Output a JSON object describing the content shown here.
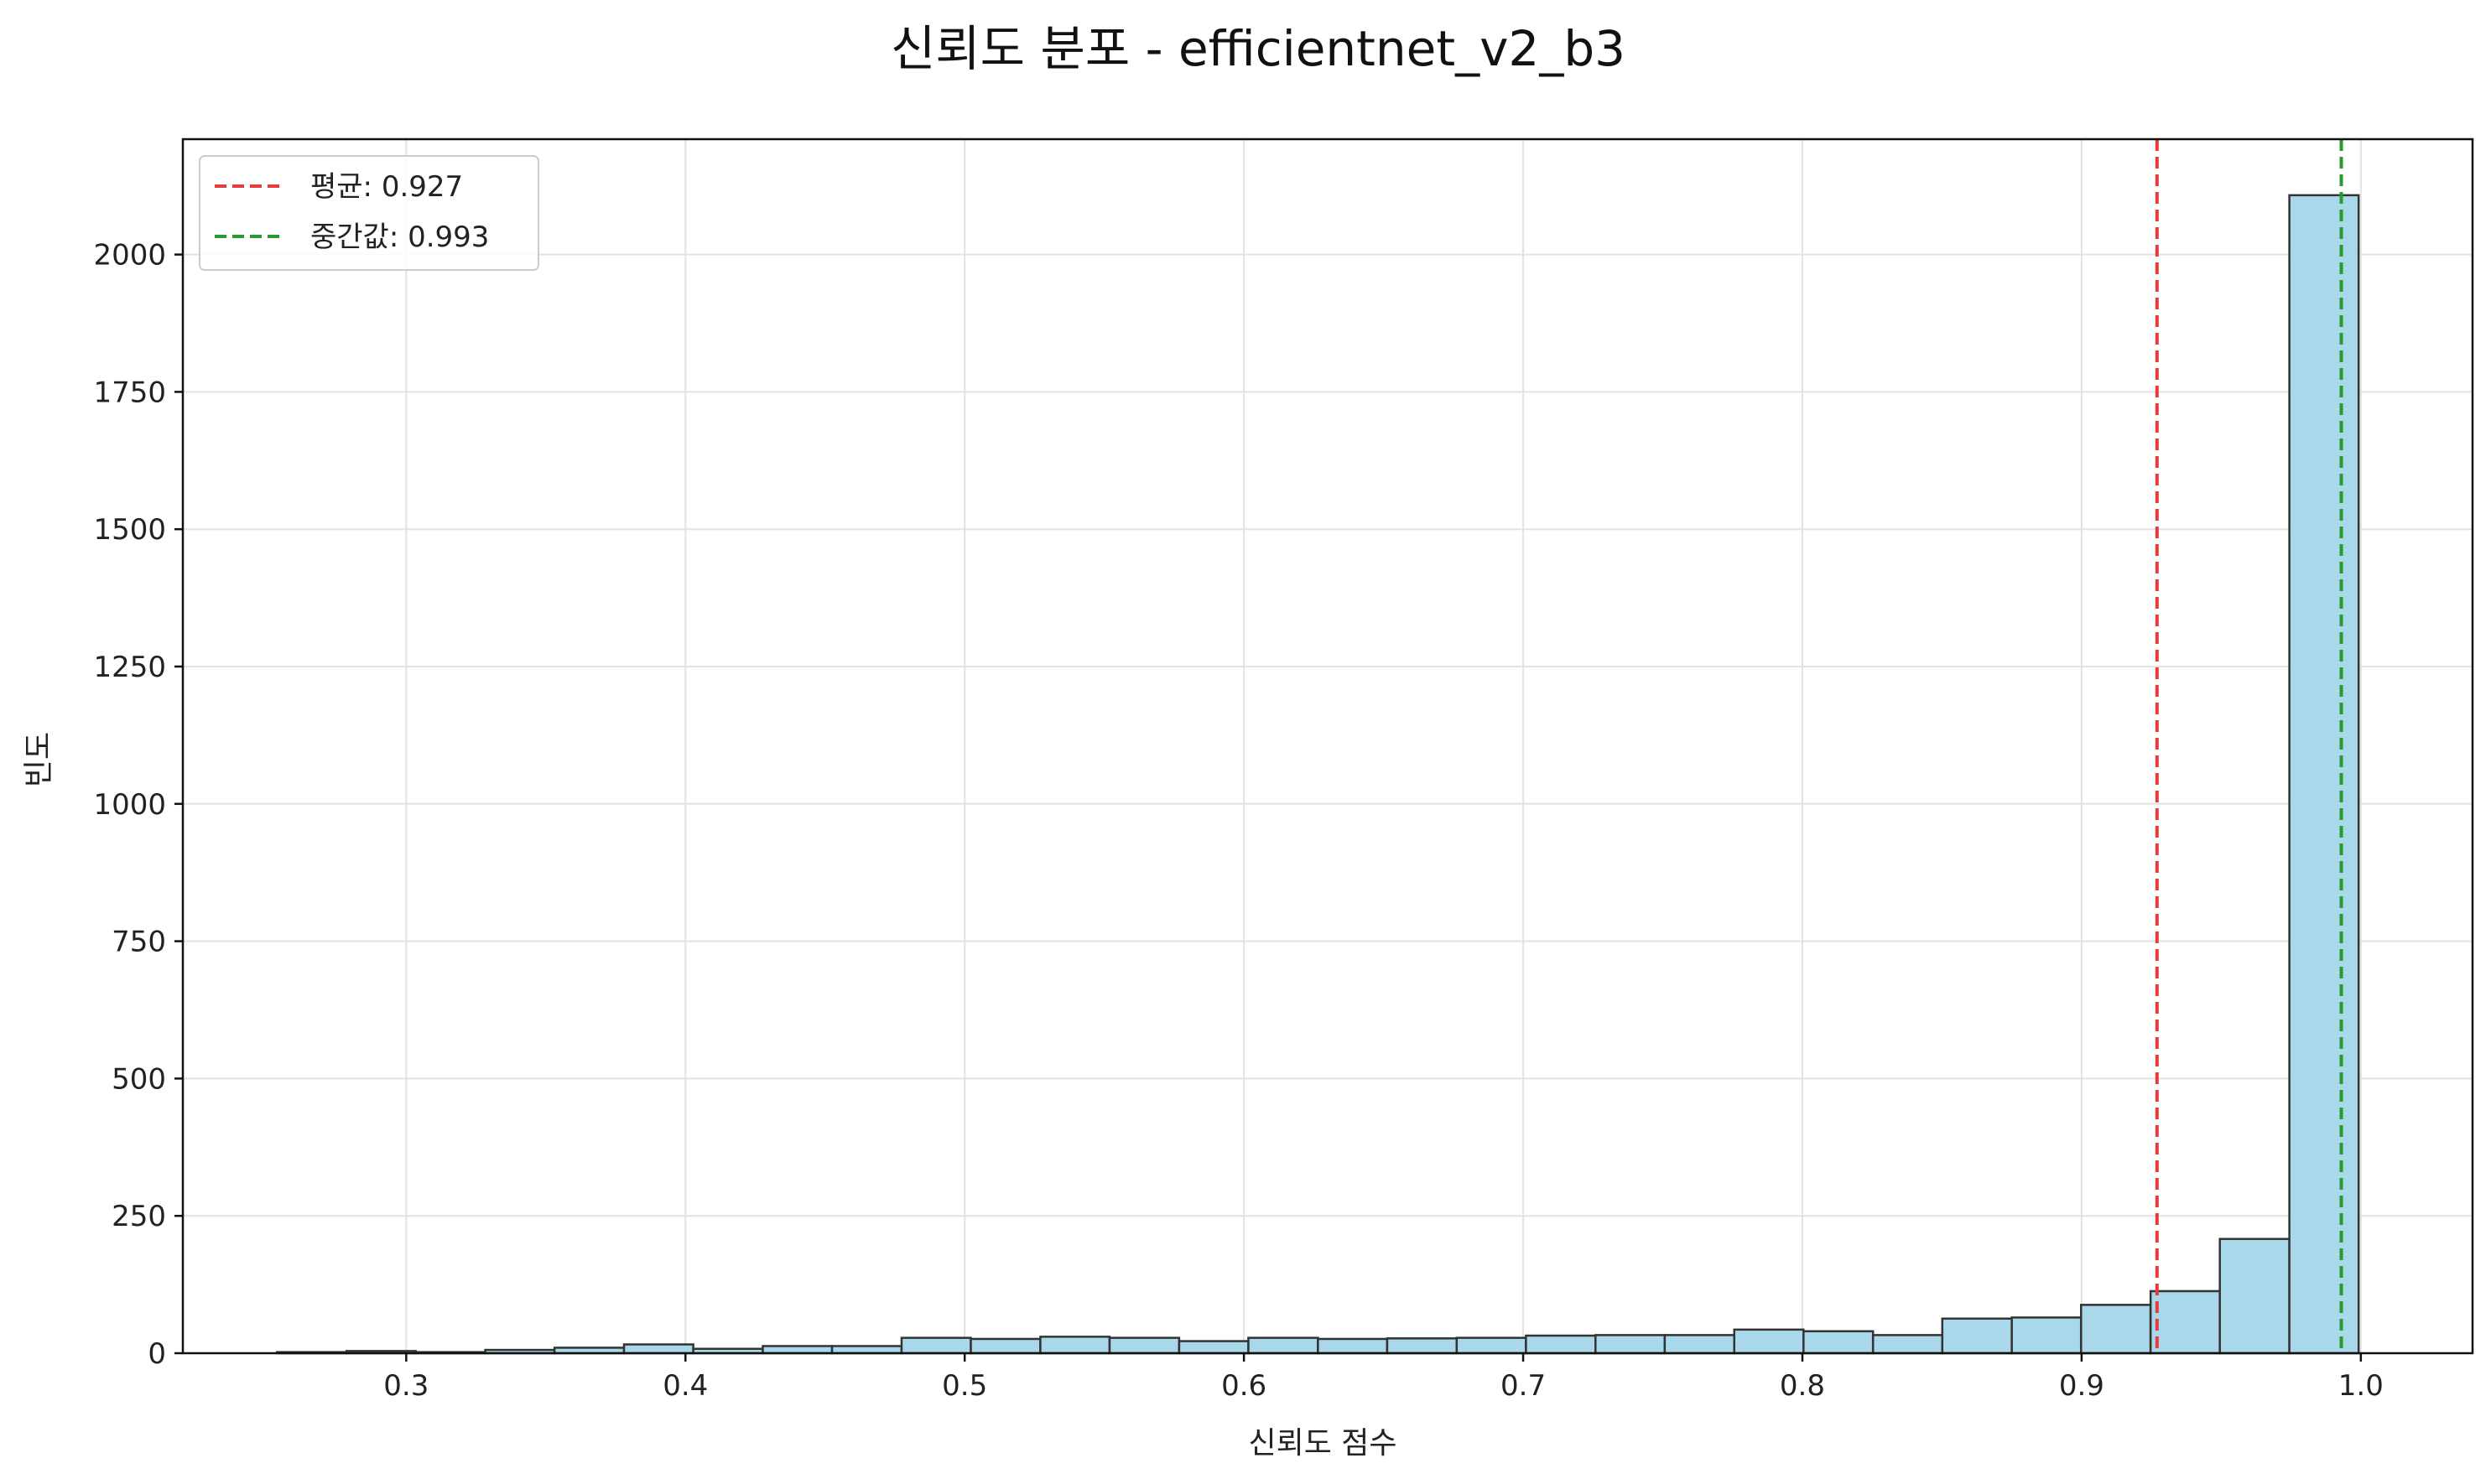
{
  "chart_data": {
    "type": "bar",
    "title": "신뢰도 분포 - efficientnet_v2_b3",
    "xlabel": "신뢰도 점수",
    "ylabel": "빈도",
    "xlim": [
      0.22,
      1.04
    ],
    "ylim": [
      0,
      2210
    ],
    "x_ticks": [
      0.3,
      0.4,
      0.5,
      0.6,
      0.7,
      0.8,
      0.9,
      1.0
    ],
    "x_tick_labels": [
      "0.3",
      "0.4",
      "0.5",
      "0.6",
      "0.7",
      "0.8",
      "0.9",
      "1.0"
    ],
    "y_ticks": [
      0,
      250,
      500,
      750,
      1000,
      1250,
      1500,
      1750,
      2000
    ],
    "y_tick_labels": [
      "0",
      "250",
      "500",
      "750",
      "1000",
      "1250",
      "1500",
      "1750",
      "2000"
    ],
    "grid": true,
    "legend_placement": "top-left",
    "bar_color": "#a8d8ea",
    "bar_edge_color": "#333333",
    "bins": [
      {
        "x0": 0.2537,
        "x1": 0.2786,
        "count": 2
      },
      {
        "x0": 0.2786,
        "x1": 0.3034,
        "count": 4
      },
      {
        "x0": 0.3034,
        "x1": 0.3283,
        "count": 2
      },
      {
        "x0": 0.3283,
        "x1": 0.3531,
        "count": 6
      },
      {
        "x0": 0.3531,
        "x1": 0.378,
        "count": 10
      },
      {
        "x0": 0.378,
        "x1": 0.4028,
        "count": 16
      },
      {
        "x0": 0.4028,
        "x1": 0.4277,
        "count": 8
      },
      {
        "x0": 0.4277,
        "x1": 0.4525,
        "count": 13
      },
      {
        "x0": 0.4525,
        "x1": 0.4774,
        "count": 13
      },
      {
        "x0": 0.4774,
        "x1": 0.5022,
        "count": 28
      },
      {
        "x0": 0.5022,
        "x1": 0.5271,
        "count": 26
      },
      {
        "x0": 0.5271,
        "x1": 0.5519,
        "count": 30
      },
      {
        "x0": 0.5519,
        "x1": 0.5768,
        "count": 28
      },
      {
        "x0": 0.5768,
        "x1": 0.6016,
        "count": 22
      },
      {
        "x0": 0.6016,
        "x1": 0.6265,
        "count": 28
      },
      {
        "x0": 0.6265,
        "x1": 0.6513,
        "count": 26
      },
      {
        "x0": 0.6513,
        "x1": 0.6762,
        "count": 27
      },
      {
        "x0": 0.6762,
        "x1": 0.701,
        "count": 28
      },
      {
        "x0": 0.701,
        "x1": 0.7259,
        "count": 32
      },
      {
        "x0": 0.7259,
        "x1": 0.7507,
        "count": 33
      },
      {
        "x0": 0.7507,
        "x1": 0.7756,
        "count": 33
      },
      {
        "x0": 0.7756,
        "x1": 0.8004,
        "count": 43
      },
      {
        "x0": 0.8004,
        "x1": 0.8253,
        "count": 40
      },
      {
        "x0": 0.8253,
        "x1": 0.8501,
        "count": 33
      },
      {
        "x0": 0.8501,
        "x1": 0.875,
        "count": 63
      },
      {
        "x0": 0.875,
        "x1": 0.8998,
        "count": 65
      },
      {
        "x0": 0.8998,
        "x1": 0.9247,
        "count": 88
      },
      {
        "x0": 0.9247,
        "x1": 0.9495,
        "count": 113
      },
      {
        "x0": 0.9495,
        "x1": 0.9744,
        "count": 208
      },
      {
        "x0": 0.9744,
        "x1": 0.9992,
        "count": 2108
      }
    ],
    "reference_lines": [
      {
        "label": "평균: 0.927",
        "value": 0.927,
        "color": "#e8393c"
      },
      {
        "label": "중간값: 0.993",
        "value": 0.993,
        "color": "#2a9a2e"
      }
    ]
  }
}
